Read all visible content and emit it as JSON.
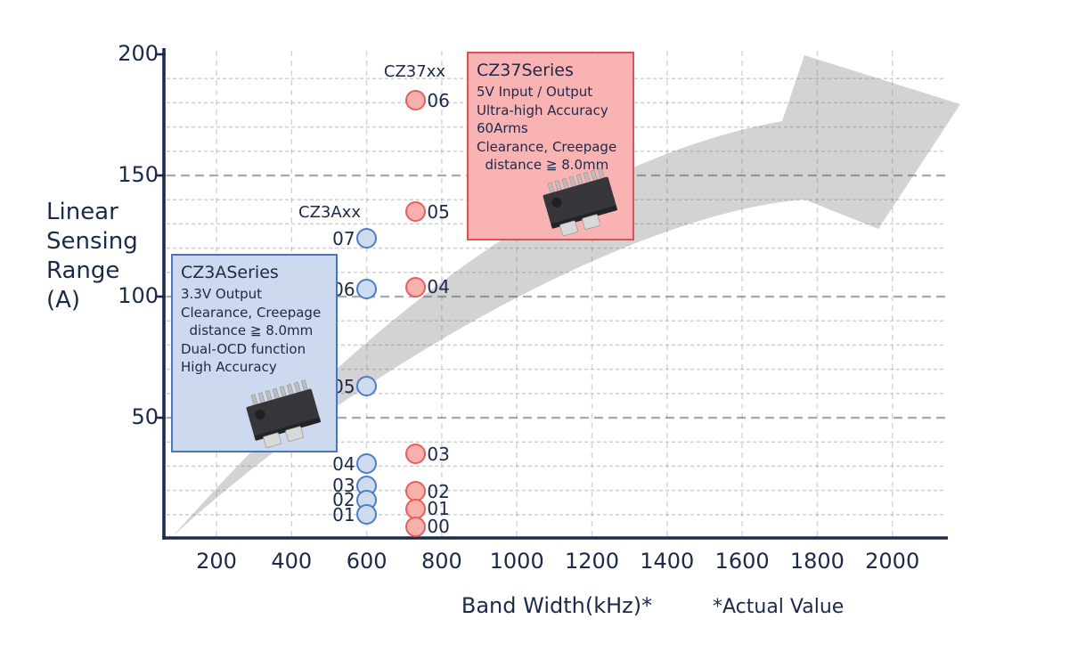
{
  "chart_data": {
    "type": "scatter",
    "title": "",
    "xlabel": "Band Width(kHz)*",
    "xlabel_note": "*Actual Value",
    "ylabel": "Linear Sensing Range (A)",
    "ylabel_lines": [
      "Linear",
      "Sensing",
      "Range",
      "(A)"
    ],
    "x_ticks": [
      200,
      400,
      600,
      800,
      1000,
      1200,
      1400,
      1600,
      1800,
      2000
    ],
    "y_ticks": [
      50,
      100,
      150,
      200
    ],
    "xlim": [
      0,
      2130
    ],
    "ylim": [
      0,
      202
    ],
    "grid": {
      "vertical_step": 200,
      "y_minor_step": 10,
      "y_major_lines": [
        50,
        100,
        150
      ],
      "style": "dashed"
    },
    "trend_arrow": "gray swoosh arrow rising from origin toward upper right",
    "series": [
      {
        "name": "CZ3Axx",
        "fill": "#cfdcf0",
        "stroke": "#4b7ec5",
        "label_side": "left",
        "x": 600,
        "points": [
          {
            "label": "07",
            "y": 124
          },
          {
            "label": "06",
            "y": 103
          },
          {
            "label": "05",
            "y": 63
          },
          {
            "label": "04",
            "y": 31
          },
          {
            "label": "03",
            "y": 22
          },
          {
            "label": "02",
            "y": 16
          },
          {
            "label": "01",
            "y": 10
          }
        ]
      },
      {
        "name": "CZ37xx",
        "fill": "#f8b0ac",
        "stroke": "#e4605c",
        "label_side": "right",
        "x": 730,
        "points": [
          {
            "label": "06",
            "y": 181
          },
          {
            "label": "05",
            "y": 135
          },
          {
            "label": "04",
            "y": 104
          },
          {
            "label": "03",
            "y": 35
          },
          {
            "label": "02",
            "y": 19.5
          },
          {
            "label": "01",
            "y": 12.5
          },
          {
            "label": "00",
            "y": 5
          }
        ]
      }
    ]
  },
  "series_labels": {
    "blue": "CZ3Axx",
    "red": "CZ37xx"
  },
  "callouts": {
    "blue": {
      "title": "CZ3ASeries",
      "lines": [
        "3.3V Output",
        "Clearance, Creepage",
        "  distance ≧ 8.0mm",
        "Dual-OCD function",
        "High Accuracy"
      ],
      "bg": "#cdd9ee",
      "border": "#4a74c0"
    },
    "red": {
      "title": "CZ37Series",
      "lines": [
        "5V Input / Output",
        "Ultra-high Accuracy",
        "60Arms",
        "Clearance, Creepage",
        "  distance ≧ 8.0mm"
      ],
      "bg": "#f9b3b3",
      "border": "#e25151"
    }
  },
  "colors": {
    "text": "#1b2a4a",
    "axis": "#1c2b4d",
    "arrow": "#d3d3d3",
    "grid_minor": "rgba(130,130,130,0.38)",
    "grid_major": "rgba(100,100,100,0.55)",
    "grid_vertical": "rgba(130,130,130,0.33)"
  }
}
